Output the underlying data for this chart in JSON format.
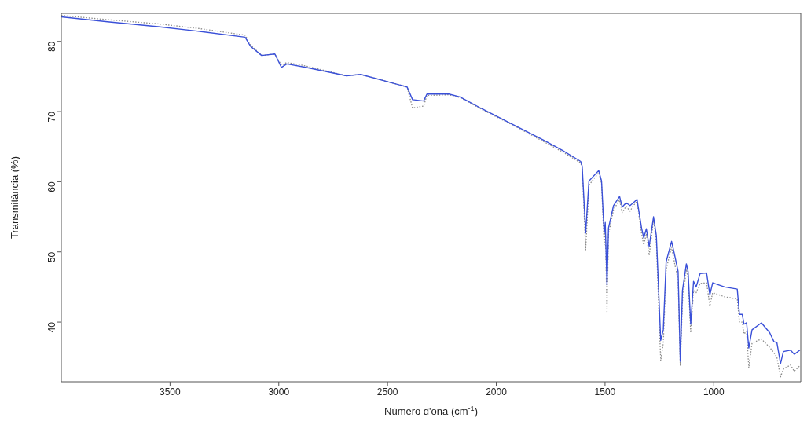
{
  "chart_data": {
    "type": "line",
    "xlabel": "Número d'ona (cm$^{-1}$)",
    "ylabel": "Transmitància (%)",
    "xlim": [
      4000,
      600
    ],
    "xticks": [
      3500,
      3000,
      2500,
      2000,
      1500,
      1000
    ],
    "ylim": [
      31.5,
      84
    ],
    "yticks": [
      40,
      50,
      60,
      70,
      80
    ],
    "grid": false,
    "legend": false,
    "marker": "none",
    "x": [
      4000,
      3788,
      3555,
      3383,
      3155,
      3130,
      3079,
      3018,
      2988,
      2963,
      2876,
      2689,
      2623,
      2410,
      2385,
      2334,
      2319,
      2218,
      2167,
      2066,
      1907,
      1781,
      1698,
      1612,
      1605,
      1589,
      1574,
      1529,
      1516,
      1504,
      1499,
      1491,
      1484,
      1461,
      1433,
      1421,
      1403,
      1385,
      1370,
      1353,
      1332,
      1322,
      1310,
      1297,
      1277,
      1264,
      1244,
      1232,
      1219,
      1194,
      1181,
      1164,
      1154,
      1144,
      1126,
      1118,
      1106,
      1093,
      1081,
      1063,
      1033,
      1018,
      1005,
      950,
      892,
      882,
      869,
      861,
      849,
      839,
      824,
      781,
      743,
      723,
      710,
      693,
      680,
      647,
      630,
      604
    ],
    "series": [
      {
        "color": "#8a8a8a",
        "line_style": "dotted",
        "values": [
          83.7,
          83.1,
          82.5,
          81.9,
          80.9,
          79.5,
          78.0,
          78.2,
          76.6,
          77.0,
          76.5,
          75.1,
          75.3,
          73.5,
          70.5,
          70.8,
          72.3,
          72.4,
          72.0,
          70.3,
          67.8,
          65.7,
          64.3,
          62.7,
          62.0,
          50.3,
          59.5,
          61.3,
          59.8,
          51.0,
          53.5,
          41.5,
          52.5,
          56.0,
          57.4,
          55.6,
          56.5,
          55.8,
          56.6,
          57.2,
          52.6,
          51.0,
          52.6,
          49.5,
          54.6,
          51.5,
          34.5,
          37.0,
          47.5,
          50.7,
          48.5,
          46.0,
          33.8,
          43.0,
          47.5,
          46.3,
          38.5,
          44.5,
          44.2,
          45.5,
          45.6,
          42.3,
          44.2,
          43.6,
          43.3,
          40.0,
          40.0,
          38.3,
          38.7,
          33.5,
          37.0,
          37.6,
          36.4,
          35.6,
          35.0,
          32.2,
          33.3,
          33.9,
          33.0,
          33.8
        ]
      },
      {
        "color": "#3a50d8",
        "line_style": "solid",
        "values": [
          83.5,
          82.8,
          82.1,
          81.5,
          80.6,
          79.3,
          78.0,
          78.2,
          76.3,
          76.8,
          76.3,
          75.1,
          75.3,
          73.5,
          71.7,
          71.5,
          72.5,
          72.5,
          72.1,
          70.4,
          67.9,
          65.9,
          64.5,
          62.9,
          62.2,
          52.7,
          60.1,
          61.6,
          60.1,
          52.7,
          54.2,
          45.3,
          53.4,
          56.6,
          57.9,
          56.4,
          57.0,
          56.6,
          57.0,
          57.5,
          53.4,
          52.0,
          53.3,
          50.8,
          55.0,
          52.3,
          37.4,
          38.9,
          48.6,
          51.5,
          49.7,
          47.2,
          34.4,
          44.5,
          48.3,
          47.2,
          39.7,
          45.8,
          45.0,
          46.9,
          47.0,
          43.9,
          45.6,
          45.0,
          44.7,
          41.1,
          41.1,
          39.7,
          39.9,
          36.3,
          38.9,
          39.9,
          38.5,
          37.2,
          37.1,
          34.1,
          35.8,
          36.0,
          35.4,
          36.0
        ]
      }
    ]
  }
}
